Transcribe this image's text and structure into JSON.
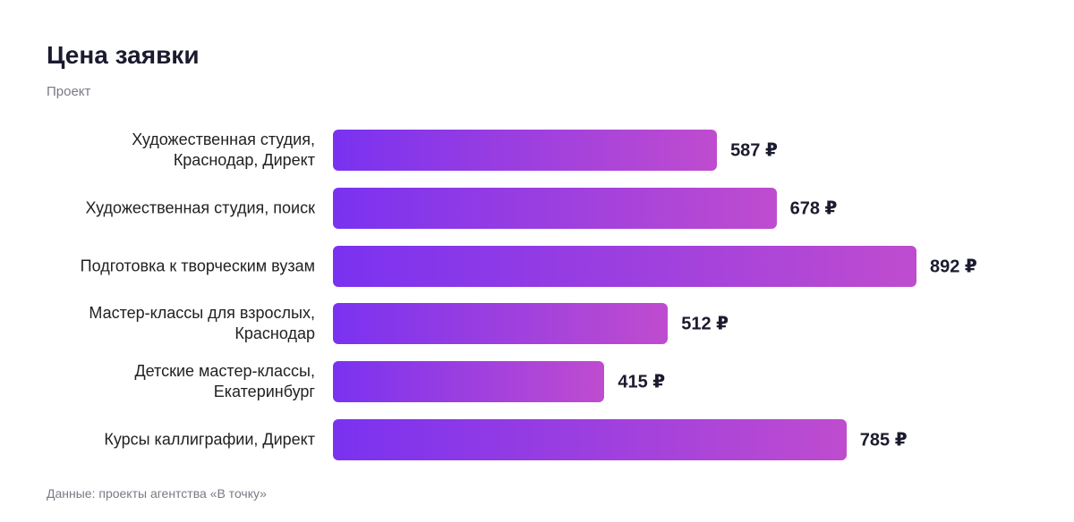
{
  "chart_data": {
    "type": "bar",
    "orientation": "horizontal",
    "title": "Цена заявки",
    "subtitle": "Проект",
    "source": "Данные: проекты агентства «В точку»",
    "categories": [
      "Художественная студия,\nКраснодар, Директ",
      "Художественная студия, поиск",
      "Подготовка к творческим вузам",
      "Мастер-классы для взрослых,\nКраснодар",
      "Детские мастер-классы,\nЕкатеринбург",
      "Курсы каллиграфии, Директ"
    ],
    "values": [
      587,
      678,
      892,
      512,
      415,
      785
    ],
    "value_labels": [
      "587 ₽",
      "678 ₽",
      "892 ₽",
      "512 ₽",
      "415 ₽",
      "785 ₽"
    ],
    "color": [
      "#7a32f0",
      "#bf4ccf"
    ]
  }
}
